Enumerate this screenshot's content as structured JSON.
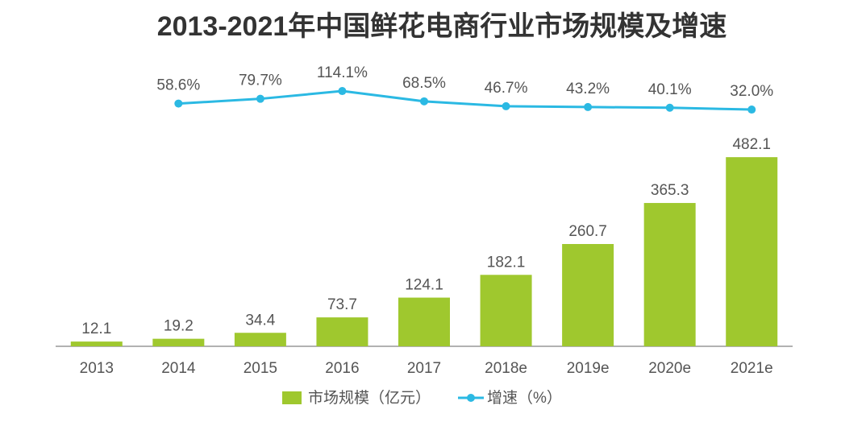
{
  "chart_data": {
    "type": "bar-line",
    "title": "2013-2021年中国鲜花电商行业市场规模及增速",
    "categories": [
      "2013",
      "2014",
      "2015",
      "2016",
      "2017",
      "2018e",
      "2019e",
      "2020e",
      "2021e"
    ],
    "series": [
      {
        "name": "市场规模（亿元）",
        "type": "bar",
        "color": "#9fc82e",
        "values": [
          12.1,
          19.2,
          34.4,
          73.7,
          124.1,
          182.1,
          260.7,
          365.3,
          482.1
        ]
      },
      {
        "name": "增速（%）",
        "type": "line",
        "axis": "y2",
        "color": "#2bb9e3",
        "values": [
          null,
          58.6,
          79.7,
          114.1,
          68.5,
          46.7,
          43.2,
          40.1,
          32.0
        ],
        "value_labels": [
          null,
          "58.6%",
          "79.7%",
          "114.1%",
          "68.5%",
          "46.7%",
          "43.2%",
          "40.1%",
          "32.0%"
        ]
      }
    ],
    "ylim": [
      0,
      700
    ],
    "y2lim": [
      0,
      200
    ],
    "legend": "bottom"
  }
}
